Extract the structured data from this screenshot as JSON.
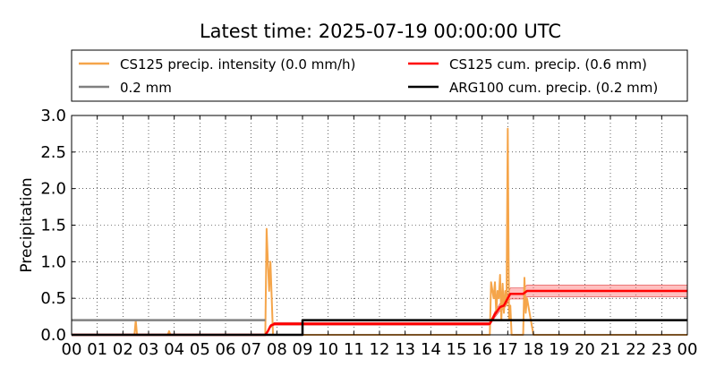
{
  "chart_data": {
    "type": "line",
    "title": "Latest time: 2025-07-19 00:00:00 UTC",
    "xlabel": "",
    "ylabel": "Precipitation",
    "xlim": [
      0,
      24
    ],
    "ylim": [
      0,
      3.0
    ],
    "x_tick_labels": [
      "00",
      "01",
      "02",
      "03",
      "04",
      "05",
      "06",
      "07",
      "08",
      "09",
      "10",
      "11",
      "12",
      "13",
      "14",
      "15",
      "16",
      "17",
      "18",
      "19",
      "20",
      "21",
      "22",
      "23",
      "00"
    ],
    "y_tick_labels": [
      "0.0",
      "0.5",
      "1.0",
      "1.5",
      "2.0",
      "2.5",
      "3.0"
    ],
    "y_ticks": [
      0,
      0.5,
      1.0,
      1.5,
      2.0,
      2.5,
      3.0
    ],
    "grid": true,
    "legend_position": "top (above plot, two columns)",
    "series": [
      {
        "name": "CS125 precip. intensity (0.0 mm/h)",
        "color": "#f5a54a",
        "x": [
          0,
          2.45,
          2.5,
          2.55,
          3.75,
          3.8,
          3.85,
          7.55,
          7.6,
          7.65,
          7.7,
          7.75,
          7.8,
          7.85,
          7.9,
          16.3,
          16.35,
          16.45,
          16.5,
          16.55,
          16.6,
          16.65,
          16.7,
          16.75,
          16.8,
          16.85,
          16.9,
          16.95,
          17.0,
          17.05,
          17.1,
          17.15,
          17.6,
          17.65,
          17.7,
          17.75,
          18.0,
          24
        ],
        "y": [
          0,
          0,
          0.2,
          0,
          0,
          0.05,
          0,
          0,
          1.45,
          1.0,
          0.6,
          1.0,
          0.5,
          0,
          0,
          0,
          0.72,
          0.5,
          0.72,
          0.3,
          0.6,
          0.5,
          0.82,
          0.2,
          0.7,
          0.3,
          0.6,
          0.4,
          2.82,
          0.2,
          0.4,
          0,
          0,
          0.78,
          0.3,
          0.5,
          0,
          0
        ]
      },
      {
        "name": "CS125 cum. precip. (0.6 mm)",
        "color": "#ff0000",
        "x": [
          0,
          7.55,
          7.65,
          7.75,
          7.9,
          16.3,
          16.5,
          16.7,
          16.85,
          17.0,
          17.1,
          17.2,
          17.6,
          17.75,
          24
        ],
        "y": [
          0,
          0,
          0.05,
          0.12,
          0.15,
          0.15,
          0.28,
          0.38,
          0.4,
          0.5,
          0.56,
          0.56,
          0.56,
          0.6,
          0.6
        ],
        "band_lower": [
          0,
          0,
          0.04,
          0.1,
          0.13,
          0.13,
          0.24,
          0.33,
          0.35,
          0.44,
          0.49,
          0.49,
          0.49,
          0.52,
          0.52
        ],
        "band_upper": [
          0,
          0,
          0.06,
          0.14,
          0.17,
          0.17,
          0.32,
          0.43,
          0.46,
          0.56,
          0.64,
          0.64,
          0.64,
          0.68,
          0.68
        ],
        "band_color": "#ff7070"
      },
      {
        "name": "0.2 mm",
        "color": "#808080",
        "x": [
          0,
          7.55
        ],
        "y": [
          0.2,
          0.2
        ]
      },
      {
        "name": "ARG100 cum. precip. (0.2 mm)",
        "color": "#000000",
        "x": [
          0,
          9.0,
          9.0,
          17.7,
          17.75,
          24
        ],
        "y": [
          0,
          0,
          0.2,
          0.2,
          0.2,
          0.2
        ]
      }
    ]
  }
}
